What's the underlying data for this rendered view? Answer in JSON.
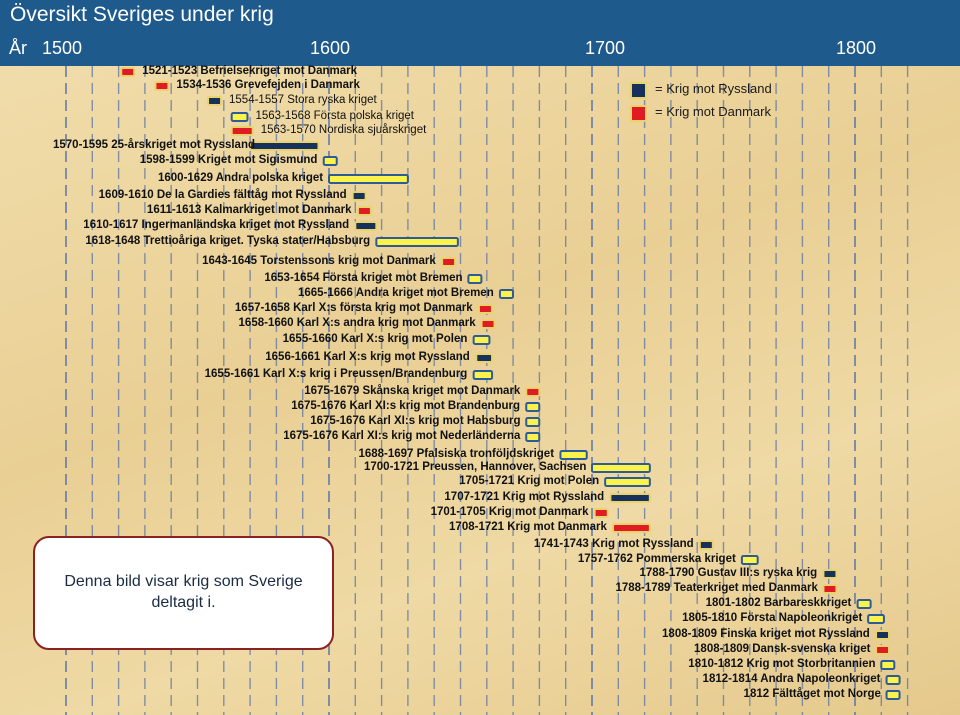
{
  "title": "Översikt Sveriges under krig",
  "axis": {
    "label": "År",
    "ticks": [
      "1500",
      "1600",
      "1700",
      "1800"
    ]
  },
  "legend": [
    {
      "key": "ryssland",
      "label": "= Krig mot Ryssland",
      "color": "#16325c"
    },
    {
      "key": "danmark",
      "label": "= Krig mot Danmark",
      "color": "#e01b24"
    }
  ],
  "colors": {
    "ryssland": "#16325c",
    "danmark": "#e01b24",
    "other": "#fbf24a",
    "border": "#2d5b97",
    "header": "#1f5a8c"
  },
  "note": "Denna bild visar krig som Sverige deltagit i.",
  "chart_data": {
    "type": "gantt",
    "x_axis": {
      "range": [
        1480,
        1830
      ],
      "ticks": [
        1500,
        1600,
        1700,
        1800
      ]
    },
    "wars": [
      {
        "label": "1521-1523 Befrielsekriget mot Danmark",
        "start": 1521,
        "end": 1523,
        "opponent": "danmark"
      },
      {
        "label": "1534-1536 Grevefejden i Danmark",
        "start": 1534,
        "end": 1536,
        "opponent": "danmark"
      },
      {
        "label": "1554-1557 Stora ryska kriget",
        "start": 1554,
        "end": 1557,
        "opponent": "ryssland"
      },
      {
        "label": "1563-1568  Första polska kriget",
        "start": 1563,
        "end": 1568,
        "opponent": "other"
      },
      {
        "label": "1563-1570  Nordiska sjuårskriget",
        "start": 1563,
        "end": 1570,
        "opponent": "danmark"
      },
      {
        "label": "1570-1595  25-årskriget mot Ryssland",
        "start": 1570,
        "end": 1595,
        "opponent": "ryssland"
      },
      {
        "label": "1598-1599 Kriget mot Sigismund",
        "start": 1598,
        "end": 1599,
        "opponent": "other"
      },
      {
        "label": "1600-1629 Andra polska kriget",
        "start": 1600,
        "end": 1629,
        "opponent": "other"
      },
      {
        "label": "1609-1610 De la Gardies fälttåg mot Ryssland",
        "start": 1609,
        "end": 1610,
        "opponent": "ryssland"
      },
      {
        "label": "1611-1613 Kalmarkriget mot Danmark",
        "start": 1611,
        "end": 1613,
        "opponent": "danmark"
      },
      {
        "label": "1610-1617 Ingermanländska kriget mot Ryssland",
        "start": 1610,
        "end": 1617,
        "opponent": "ryssland"
      },
      {
        "label": "1618-1648 Trettioåriga kriget. Tyska stater/Habsburg",
        "start": 1618,
        "end": 1648,
        "opponent": "other"
      },
      {
        "label": "1643-1645 Torstenssons krig mot Danmark",
        "start": 1643,
        "end": 1645,
        "opponent": "danmark"
      },
      {
        "label": "1653-1654 Första kriget mot Bremen",
        "start": 1653,
        "end": 1654,
        "opponent": "other"
      },
      {
        "label": "1665-1666 Andra kriget mot Bremen",
        "start": 1665,
        "end": 1666,
        "opponent": "other"
      },
      {
        "label": "1657-1658 Karl X:s första krig mot Danmark",
        "start": 1657,
        "end": 1658,
        "opponent": "danmark"
      },
      {
        "label": "1658-1660 Karl X:s andra krig mot Danmark",
        "start": 1658,
        "end": 1660,
        "opponent": "danmark"
      },
      {
        "label": "1655-1660 Karl X:s krig mot Polen",
        "start": 1655,
        "end": 1660,
        "opponent": "other"
      },
      {
        "label": "1656-1661 Karl X:s krig mot Ryssland",
        "start": 1656,
        "end": 1661,
        "opponent": "ryssland"
      },
      {
        "label": "1655-1661 Karl X:s krig i Preussen/Brandenburg",
        "start": 1655,
        "end": 1661,
        "opponent": "other"
      },
      {
        "label": "1675-1679 Skånska kriget mot Danmark",
        "start": 1675,
        "end": 1679,
        "opponent": "danmark"
      },
      {
        "label": "1675-1676 Karl XI:s krig mot Brandenburg",
        "start": 1675,
        "end": 1676,
        "opponent": "other"
      },
      {
        "label": "1675-1676 Karl XI:s krig mot Habsburg",
        "start": 1675,
        "end": 1676,
        "opponent": "other"
      },
      {
        "label": "1675-1676 Karl XI:s krig mot Nederländerna",
        "start": 1675,
        "end": 1676,
        "opponent": "other"
      },
      {
        "label": "1688-1697 Pfalsiska tronföljdskriget",
        "start": 1688,
        "end": 1697,
        "opponent": "other"
      },
      {
        "label": "1700-1721 Preussen, Hannover, Sachsen",
        "start": 1700,
        "end": 1721,
        "opponent": "other"
      },
      {
        "label": "1705-1721 Krig mot Polen",
        "start": 1705,
        "end": 1721,
        "opponent": "other"
      },
      {
        "label": "1707-1721 Krig mot Ryssland",
        "start": 1707,
        "end": 1721,
        "opponent": "ryssland"
      },
      {
        "label": "1701-1705 Krig mot Danmark",
        "start": 1701,
        "end": 1705,
        "opponent": "danmark"
      },
      {
        "label": "1708-1721 Krig mot Danmark",
        "start": 1708,
        "end": 1721,
        "opponent": "danmark"
      },
      {
        "label": "1741-1743 Krig mot Ryssland",
        "start": 1741,
        "end": 1743,
        "opponent": "ryssland"
      },
      {
        "label": "1757-1762 Pommerska kriget",
        "start": 1757,
        "end": 1762,
        "opponent": "other"
      },
      {
        "label": "1788-1790 Gustav III:s ryska krig",
        "start": 1788,
        "end": 1790,
        "opponent": "ryssland"
      },
      {
        "label": "1788-1789 Teaterkriget med Danmark",
        "start": 1788,
        "end": 1789,
        "opponent": "danmark"
      },
      {
        "label": "1801-1802 Barbareskkriget",
        "start": 1801,
        "end": 1802,
        "opponent": "other"
      },
      {
        "label": "1805-1810 Första Napoleonkriget",
        "start": 1805,
        "end": 1810,
        "opponent": "other"
      },
      {
        "label": "1808-1809 Finska kriget mot Ryssland",
        "start": 1808,
        "end": 1809,
        "opponent": "ryssland"
      },
      {
        "label": "1808-1809 Dansk-svenska kriget",
        "start": 1808,
        "end": 1809,
        "opponent": "danmark"
      },
      {
        "label": "1810-1812 Krig mot Storbritannien",
        "start": 1810,
        "end": 1812,
        "opponent": "other"
      },
      {
        "label": "1812-1814 Andra Napoleonkriget",
        "start": 1812,
        "end": 1814,
        "opponent": "other"
      },
      {
        "label": "1812  Fälttåget mot Norge",
        "start": 1812,
        "end": 1812,
        "opponent": "other"
      }
    ]
  }
}
